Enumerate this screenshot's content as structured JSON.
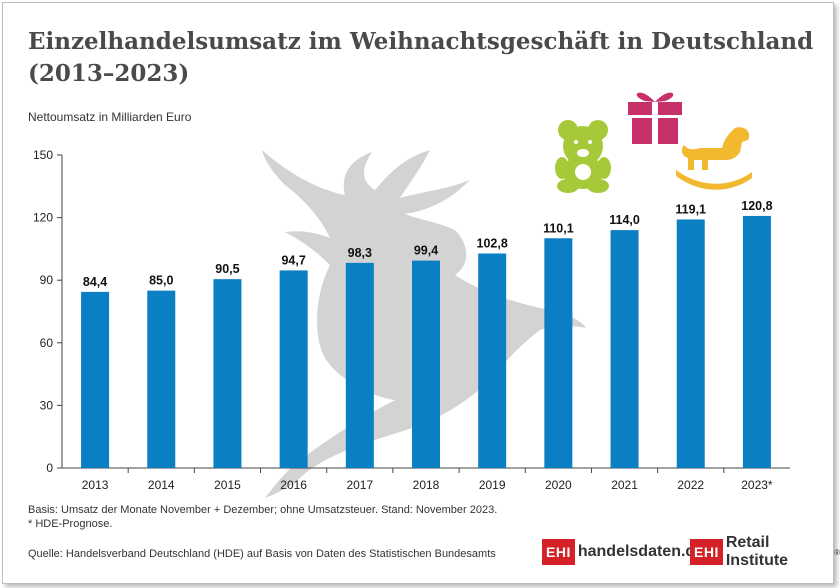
{
  "title": "Einzelhandelsumsatz im Weihnachtsgeschäft in Deutschland (2013–2023)",
  "chart_data": {
    "type": "bar",
    "title": "Einzelhandelsumsatz im Weihnachtsgeschäft in Deutschland (2013–2023)",
    "ylabel": "Nettoumsatz in Milliarden Euro",
    "xlabel": "",
    "categories": [
      "2013",
      "2014",
      "2015",
      "2016",
      "2017",
      "2018",
      "2019",
      "2020",
      "2021",
      "2022",
      "2023*"
    ],
    "values": [
      84.4,
      85.0,
      90.5,
      94.7,
      98.3,
      99.4,
      102.8,
      110.1,
      114.0,
      119.1,
      120.8
    ],
    "value_labels": [
      "84,4",
      "85,0",
      "90,5",
      "94,7",
      "98,3",
      "99,4",
      "102,8",
      "110,1",
      "114,0",
      "119,1",
      "120,8"
    ],
    "ylim": [
      0,
      150
    ],
    "yticks": [
      "0",
      "30",
      "60",
      "90",
      "120",
      "150"
    ],
    "bar_color": "#0a7fc4",
    "grid": false,
    "legend": "none"
  },
  "footnotes": {
    "basis": "Basis: Umsatz der Monate November + Dezember; ohne Umsatzsteuer. Stand: November 2023.",
    "forecast": "* HDE-Prognose.",
    "source": "Quelle: Handelsverband Deutschland (HDE) auf Basis von Daten des Statistischen Bundesamts"
  },
  "logos": {
    "left": {
      "box": "EHI",
      "text": "handelsdaten.de"
    },
    "right": {
      "box": "EHI",
      "text": "Retail Institute",
      "mark": "®"
    }
  },
  "decorations": {
    "reindeer_color": "#d3d3d3",
    "teddy_color": "#a6c93a",
    "gift_color": "#c8306a",
    "rocking_horse_color": "#f2b930"
  }
}
